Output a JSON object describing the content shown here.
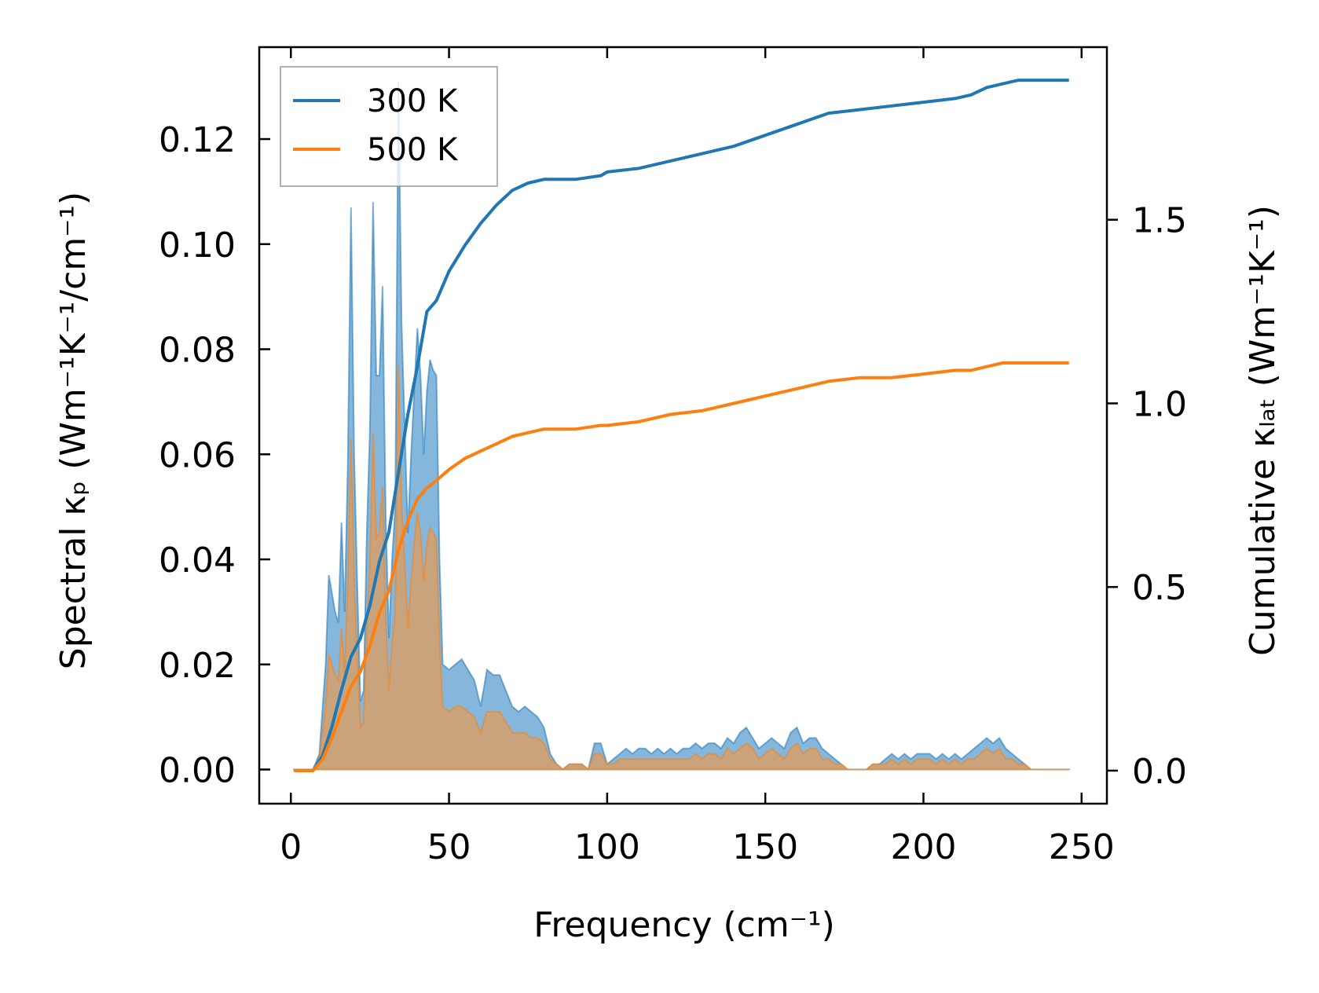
{
  "chart_data": {
    "type": "line",
    "title": "",
    "xlabel": "Frequency (cm⁻¹)",
    "ylabel_left": "Spectral κₚ (Wm⁻¹K⁻¹/cm⁻¹)",
    "ylabel_right": "Cumulative κₗₐₜ (Wm⁻¹K⁻¹)",
    "xlim": [
      -10,
      258
    ],
    "ylim_left": [
      -0.0065,
      0.1375
    ],
    "ylim_right": [
      -0.09,
      1.97
    ],
    "x_ticks": [
      0,
      50,
      100,
      150,
      200,
      250
    ],
    "x_tick_labels": [
      "0",
      "50",
      "100",
      "150",
      "200",
      "250"
    ],
    "y_left_ticks": [
      0,
      0.02,
      0.04,
      0.06,
      0.08,
      0.1,
      0.12
    ],
    "y_left_tick_labels": [
      "0.00",
      "0.02",
      "0.04",
      "0.06",
      "0.08",
      "0.10",
      "0.12"
    ],
    "y_right_ticks": [
      0,
      0.5,
      1.0,
      1.5
    ],
    "y_right_tick_labels": [
      "0.0",
      "0.5",
      "1.0",
      "1.5"
    ],
    "grid": false,
    "legend_position": "top-left",
    "colors": {
      "300K": "#1f77b4",
      "500K": "#ff7f0e",
      "fill300": "#5b9fcf",
      "fill500": "#d4a06b"
    },
    "spectral_series": [
      {
        "name": "300 K",
        "x": [
          1,
          4,
          7,
          9,
          11,
          12,
          14,
          15,
          16,
          17,
          18,
          19,
          20,
          21,
          22,
          23,
          24,
          25,
          26,
          27,
          28,
          29,
          30,
          31,
          32,
          33,
          34,
          35,
          36,
          37,
          38,
          39,
          40,
          41,
          42,
          43,
          44,
          45,
          46,
          47,
          48,
          50,
          52,
          54,
          56,
          58,
          60,
          62,
          64,
          66,
          68,
          70,
          72,
          74,
          76,
          78,
          80,
          82,
          84,
          86,
          88,
          90,
          92,
          94,
          96,
          98,
          100,
          102,
          104,
          106,
          108,
          110,
          112,
          114,
          116,
          118,
          120,
          122,
          124,
          126,
          128,
          130,
          132,
          134,
          136,
          138,
          140,
          142,
          144,
          146,
          148,
          150,
          152,
          154,
          156,
          158,
          160,
          162,
          164,
          166,
          168,
          170,
          172,
          174,
          176,
          178,
          180,
          182,
          184,
          186,
          188,
          190,
          192,
          194,
          196,
          198,
          200,
          202,
          204,
          206,
          208,
          210,
          212,
          214,
          216,
          218,
          220,
          222,
          224,
          226,
          228,
          230,
          232,
          234,
          236,
          240,
          246
        ],
        "y": [
          0,
          0,
          0,
          0.003,
          0.02,
          0.037,
          0.03,
          0.028,
          0.047,
          0.03,
          0.058,
          0.107,
          0.06,
          0.035,
          0.013,
          0.015,
          0.045,
          0.065,
          0.108,
          0.075,
          0.075,
          0.092,
          0.048,
          0.025,
          0.04,
          0.05,
          0.131,
          0.085,
          0.065,
          0.045,
          0.06,
          0.072,
          0.084,
          0.075,
          0.06,
          0.072,
          0.078,
          0.076,
          0.075,
          0.04,
          0.02,
          0.019,
          0.02,
          0.021,
          0.019,
          0.017,
          0.012,
          0.019,
          0.018,
          0.018,
          0.015,
          0.012,
          0.011,
          0.012,
          0.011,
          0.01,
          0.008,
          0.003,
          0.001,
          0,
          0.001,
          0.001,
          0.001,
          0,
          0.005,
          0.005,
          0.001,
          0.002,
          0.003,
          0.004,
          0.003,
          0.004,
          0.004,
          0.003,
          0.004,
          0.003,
          0.004,
          0.003,
          0.004,
          0.004,
          0.005,
          0.004,
          0.005,
          0.005,
          0.004,
          0.006,
          0.005,
          0.007,
          0.008,
          0.006,
          0.004,
          0.005,
          0.006,
          0.005,
          0.004,
          0.007,
          0.008,
          0.005,
          0.006,
          0.006,
          0.004,
          0.003,
          0.002,
          0.001,
          0,
          0,
          0,
          0,
          0.001,
          0.001,
          0.002,
          0.003,
          0.002,
          0.003,
          0.002,
          0.003,
          0.003,
          0.003,
          0.002,
          0.003,
          0.002,
          0.003,
          0.002,
          0.003,
          0.004,
          0.005,
          0.006,
          0.005,
          0.006,
          0.004,
          0.003,
          0.002,
          0.001,
          0,
          0,
          0,
          0
        ]
      },
      {
        "name": "500 K",
        "x": [
          1,
          4,
          7,
          9,
          11,
          12,
          14,
          15,
          16,
          17,
          18,
          19,
          20,
          21,
          22,
          23,
          24,
          25,
          26,
          27,
          28,
          29,
          30,
          31,
          32,
          33,
          34,
          35,
          36,
          37,
          38,
          39,
          40,
          41,
          42,
          43,
          44,
          45,
          46,
          47,
          48,
          50,
          52,
          54,
          56,
          58,
          60,
          62,
          64,
          66,
          68,
          70,
          72,
          74,
          76,
          78,
          80,
          82,
          84,
          86,
          88,
          90,
          92,
          94,
          96,
          98,
          100,
          102,
          104,
          106,
          108,
          110,
          112,
          114,
          116,
          118,
          120,
          122,
          124,
          126,
          128,
          130,
          132,
          134,
          136,
          138,
          140,
          142,
          144,
          146,
          148,
          150,
          152,
          154,
          156,
          158,
          160,
          162,
          164,
          166,
          168,
          170,
          172,
          174,
          176,
          178,
          180,
          182,
          184,
          186,
          188,
          190,
          192,
          194,
          196,
          198,
          200,
          202,
          204,
          206,
          208,
          210,
          212,
          214,
          216,
          218,
          220,
          222,
          224,
          226,
          228,
          230,
          232,
          234,
          236,
          240,
          246
        ],
        "y": [
          0,
          0,
          0,
          0.002,
          0.012,
          0.022,
          0.018,
          0.017,
          0.027,
          0.018,
          0.035,
          0.063,
          0.036,
          0.021,
          0.008,
          0.009,
          0.027,
          0.039,
          0.064,
          0.044,
          0.045,
          0.054,
          0.028,
          0.015,
          0.024,
          0.03,
          0.077,
          0.05,
          0.039,
          0.027,
          0.036,
          0.043,
          0.049,
          0.045,
          0.036,
          0.043,
          0.046,
          0.045,
          0.044,
          0.024,
          0.012,
          0.011,
          0.012,
          0.012,
          0.011,
          0.01,
          0.007,
          0.011,
          0.011,
          0.011,
          0.009,
          0.007,
          0.007,
          0.007,
          0.006,
          0.006,
          0.005,
          0.002,
          0.001,
          0,
          0.001,
          0.001,
          0.001,
          0,
          0.003,
          0.003,
          0.001,
          0.001,
          0.002,
          0.002,
          0.002,
          0.002,
          0.002,
          0.002,
          0.002,
          0.002,
          0.002,
          0.002,
          0.002,
          0.002,
          0.003,
          0.002,
          0.003,
          0.003,
          0.002,
          0.004,
          0.003,
          0.004,
          0.005,
          0.004,
          0.002,
          0.003,
          0.004,
          0.003,
          0.002,
          0.004,
          0.005,
          0.003,
          0.004,
          0.004,
          0.002,
          0.002,
          0.001,
          0.001,
          0,
          0,
          0,
          0,
          0.001,
          0.001,
          0.001,
          0.002,
          0.001,
          0.002,
          0.001,
          0.002,
          0.002,
          0.002,
          0.001,
          0.002,
          0.001,
          0.002,
          0.001,
          0.002,
          0.002,
          0.003,
          0.004,
          0.003,
          0.004,
          0.002,
          0.002,
          0.001,
          0.001,
          0,
          0,
          0,
          0
        ]
      }
    ],
    "cumulative_series": [
      {
        "name": "300 K",
        "x": [
          1,
          4,
          7,
          10,
          13,
          16,
          19,
          22,
          25,
          28,
          31,
          34,
          37,
          40,
          43,
          46,
          50,
          55,
          60,
          65,
          70,
          75,
          80,
          90,
          98,
          100,
          110,
          120,
          130,
          140,
          150,
          160,
          170,
          180,
          190,
          200,
          210,
          215,
          220,
          225,
          230,
          240,
          246
        ],
        "y": [
          0,
          0,
          0,
          0.04,
          0.12,
          0.22,
          0.31,
          0.36,
          0.45,
          0.57,
          0.65,
          0.81,
          0.97,
          1.1,
          1.25,
          1.28,
          1.36,
          1.43,
          1.49,
          1.54,
          1.58,
          1.6,
          1.61,
          1.61,
          1.62,
          1.63,
          1.64,
          1.66,
          1.68,
          1.7,
          1.73,
          1.76,
          1.79,
          1.8,
          1.81,
          1.82,
          1.83,
          1.84,
          1.86,
          1.87,
          1.88,
          1.88,
          1.88
        ]
      },
      {
        "name": "500 K",
        "x": [
          1,
          4,
          7,
          10,
          13,
          16,
          19,
          22,
          25,
          28,
          31,
          34,
          37,
          40,
          43,
          46,
          50,
          55,
          60,
          65,
          70,
          75,
          80,
          90,
          98,
          100,
          110,
          120,
          130,
          140,
          150,
          160,
          170,
          180,
          190,
          200,
          210,
          215,
          220,
          225,
          230,
          240,
          246
        ],
        "y": [
          0,
          0,
          0,
          0.03,
          0.09,
          0.16,
          0.23,
          0.27,
          0.34,
          0.43,
          0.49,
          0.6,
          0.68,
          0.74,
          0.77,
          0.79,
          0.82,
          0.85,
          0.87,
          0.89,
          0.91,
          0.92,
          0.93,
          0.93,
          0.94,
          0.94,
          0.95,
          0.97,
          0.98,
          1.0,
          1.02,
          1.04,
          1.06,
          1.07,
          1.07,
          1.08,
          1.09,
          1.09,
          1.1,
          1.11,
          1.11,
          1.11,
          1.11
        ]
      }
    ],
    "legend": [
      {
        "label": "300 K",
        "color": "#1f77b4"
      },
      {
        "label": "500 K",
        "color": "#ff7f0e"
      }
    ]
  }
}
